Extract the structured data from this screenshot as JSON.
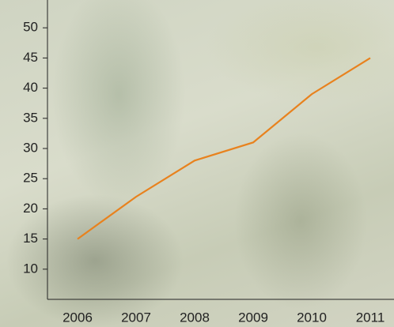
{
  "chart_data": {
    "type": "line",
    "categories": [
      "2006",
      "2007",
      "2008",
      "2009",
      "2010",
      "2011"
    ],
    "series": [
      {
        "color": "#e8821e",
        "values": [
          15,
          22,
          28,
          31,
          39,
          45
        ]
      }
    ],
    "ylim": [
      5,
      55
    ],
    "yticks": [
      10,
      15,
      20,
      25,
      30,
      35,
      40,
      45,
      50
    ]
  }
}
